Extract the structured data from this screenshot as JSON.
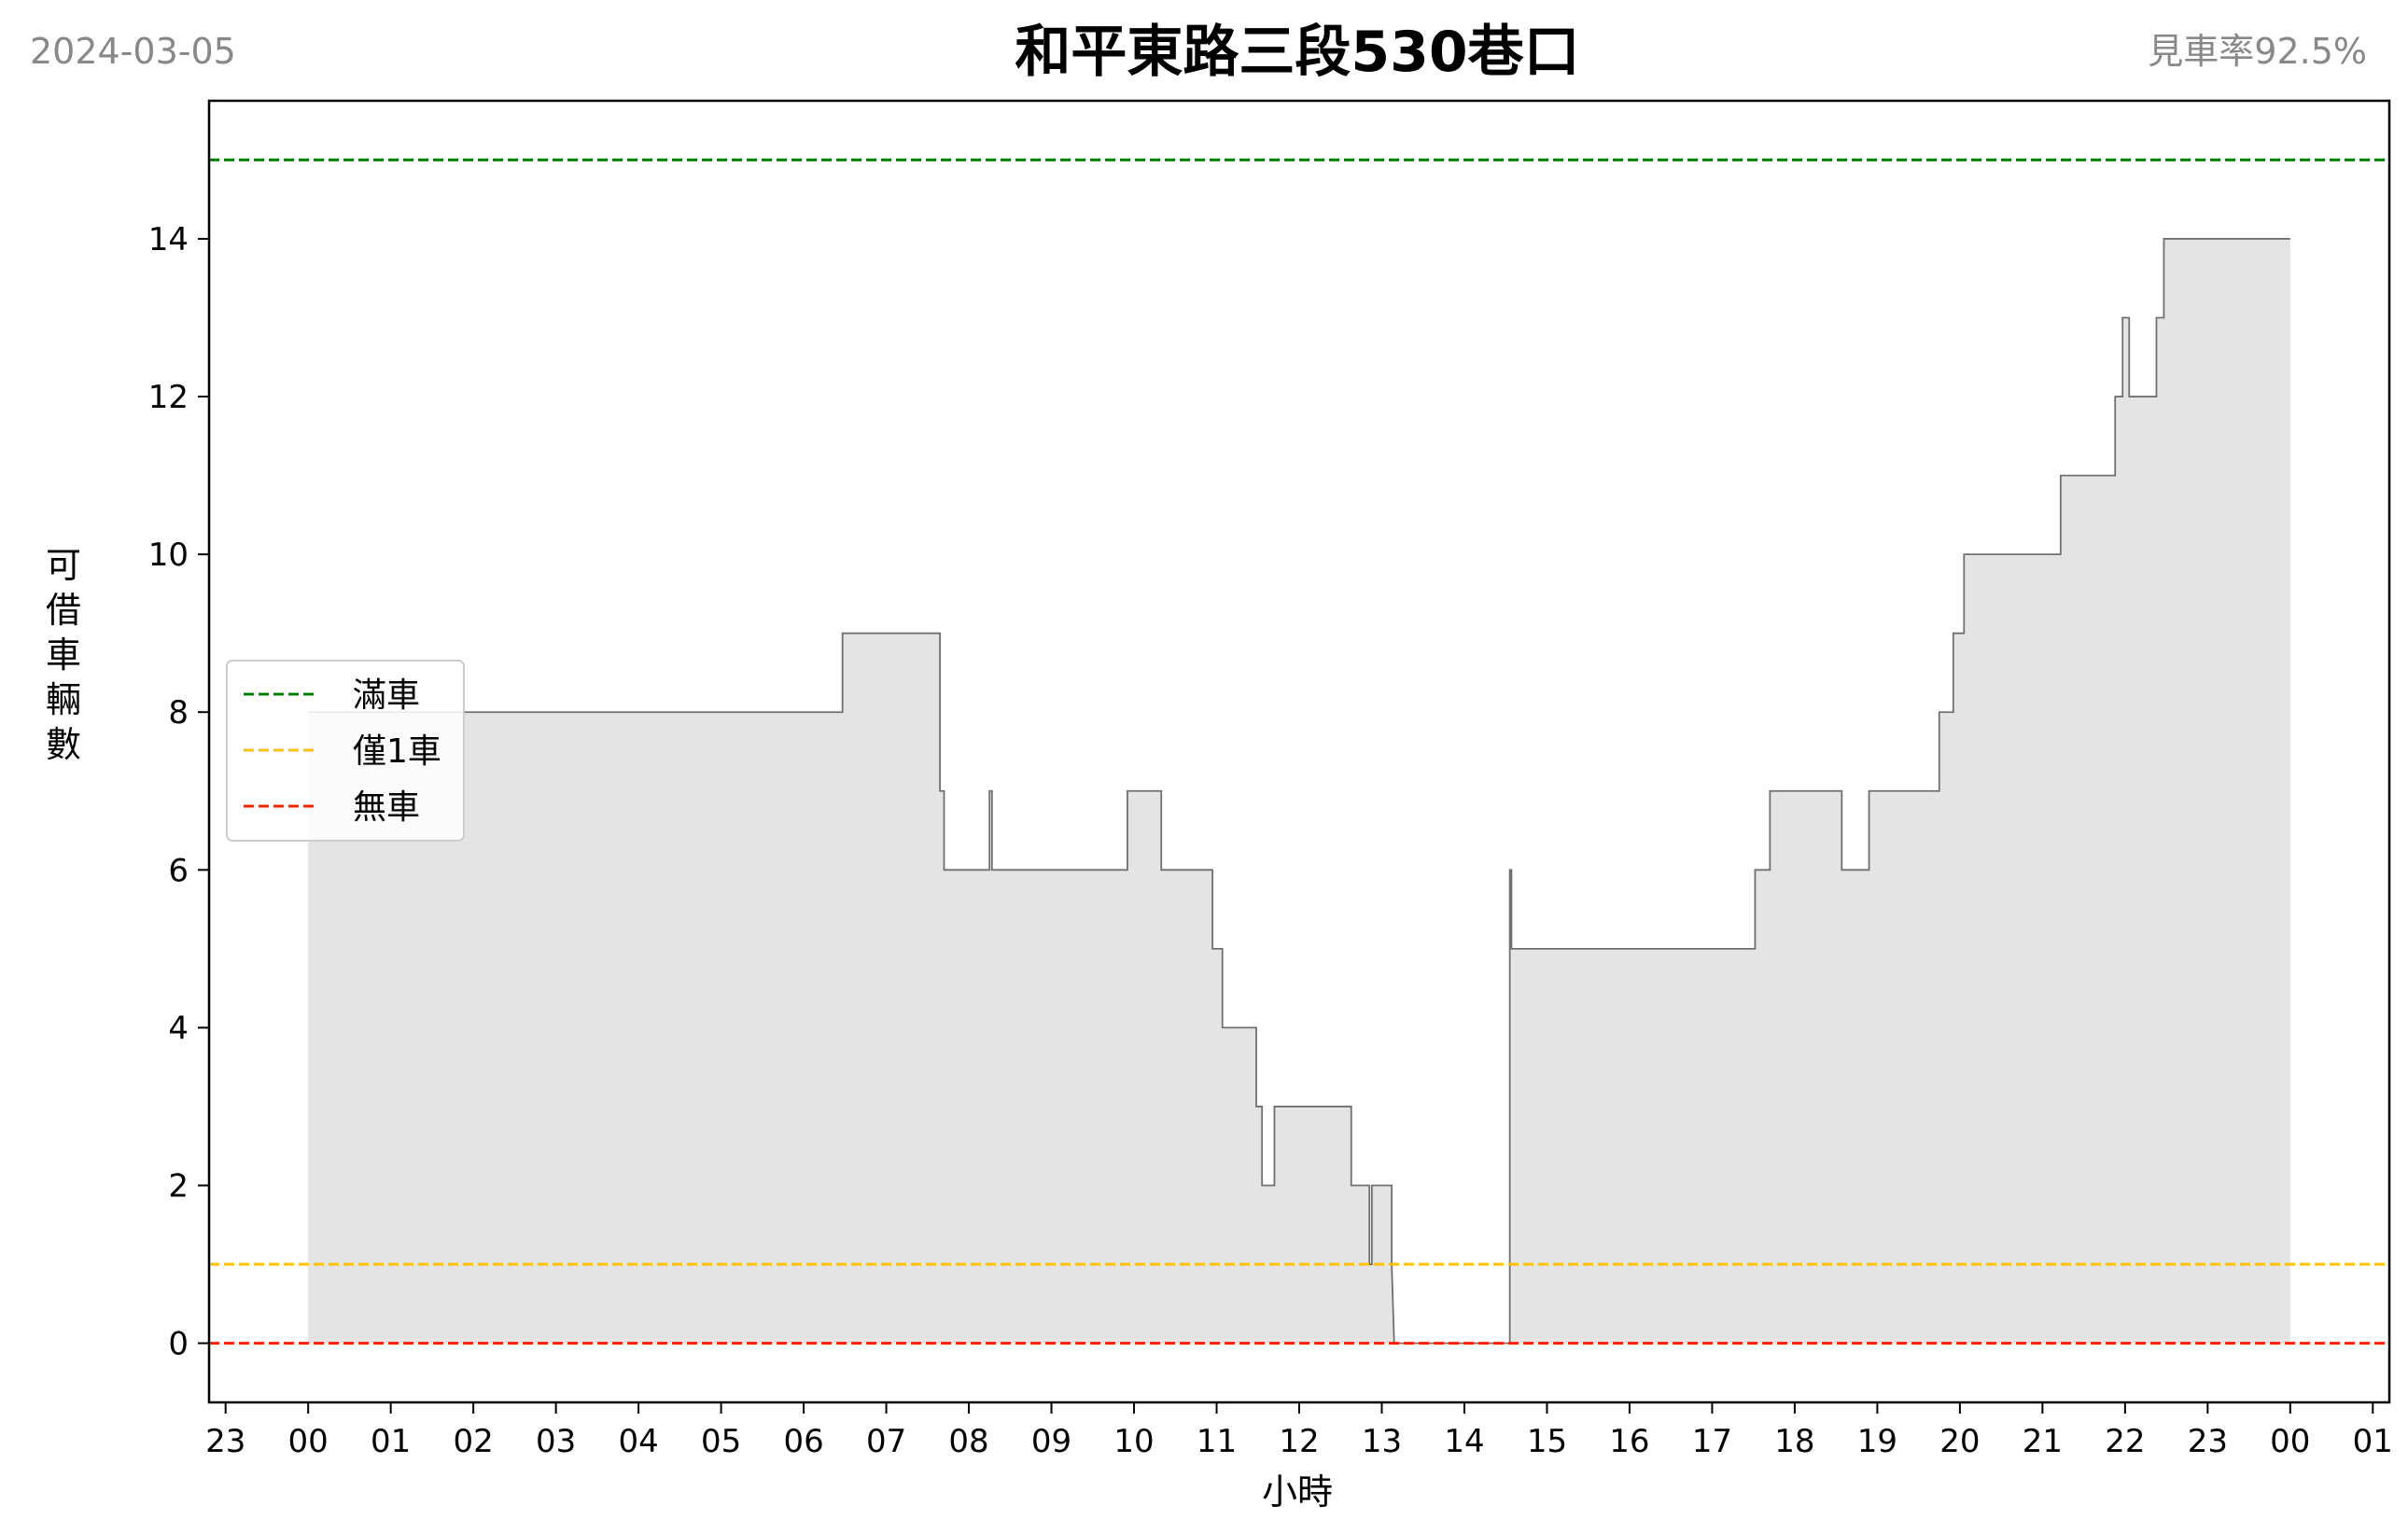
{
  "header": {
    "date": "2024-03-05",
    "title": "和平東路三段530巷口",
    "availability": "見車率92.5%"
  },
  "chart_data": {
    "type": "area",
    "title": "和平東路三段530巷口",
    "xlabel": "小時",
    "ylabel": "可借車輛數",
    "x_unit": "hours since 00:00 (2024-03-05)",
    "xlim": [
      -1.2,
      25.2
    ],
    "ylim": [
      -0.75,
      15.75
    ],
    "x_ticks": [
      {
        "pos": -1,
        "label": "23"
      },
      {
        "pos": 0,
        "label": "00"
      },
      {
        "pos": 1,
        "label": "01"
      },
      {
        "pos": 2,
        "label": "02"
      },
      {
        "pos": 3,
        "label": "03"
      },
      {
        "pos": 4,
        "label": "04"
      },
      {
        "pos": 5,
        "label": "05"
      },
      {
        "pos": 6,
        "label": "06"
      },
      {
        "pos": 7,
        "label": "07"
      },
      {
        "pos": 8,
        "label": "08"
      },
      {
        "pos": 9,
        "label": "09"
      },
      {
        "pos": 10,
        "label": "10"
      },
      {
        "pos": 11,
        "label": "11"
      },
      {
        "pos": 12,
        "label": "12"
      },
      {
        "pos": 13,
        "label": "13"
      },
      {
        "pos": 14,
        "label": "14"
      },
      {
        "pos": 15,
        "label": "15"
      },
      {
        "pos": 16,
        "label": "16"
      },
      {
        "pos": 17,
        "label": "17"
      },
      {
        "pos": 18,
        "label": "18"
      },
      {
        "pos": 19,
        "label": "19"
      },
      {
        "pos": 20,
        "label": "20"
      },
      {
        "pos": 21,
        "label": "21"
      },
      {
        "pos": 22,
        "label": "22"
      },
      {
        "pos": 23,
        "label": "23"
      },
      {
        "pos": 24,
        "label": "00"
      },
      {
        "pos": 25,
        "label": "01"
      }
    ],
    "y_ticks": [
      0,
      2,
      4,
      6,
      8,
      10,
      12,
      14
    ],
    "reference_lines": [
      {
        "name": "滿車",
        "y": 15,
        "color": "#008000"
      },
      {
        "name": "僅1車",
        "y": 1,
        "color": "#ffc000"
      },
      {
        "name": "無車",
        "y": 0,
        "color": "#ff2000"
      }
    ],
    "legend_position": "upper left",
    "series": [
      {
        "line_color": "#707070",
        "fill_color": "#e4e4e4",
        "x": [
          0,
          6.47,
          6.47,
          7.65,
          7.65,
          7.7,
          7.7,
          8.25,
          8.25,
          8.28,
          8.28,
          9.92,
          9.92,
          10.33,
          10.33,
          10.95,
          10.95,
          11.07,
          11.07,
          11.48,
          11.48,
          11.55,
          11.55,
          11.7,
          11.7,
          12.63,
          12.63,
          12.85,
          12.85,
          12.88,
          12.88,
          13.12,
          13.12,
          13.15,
          13.15,
          14.55,
          14.55,
          14.57,
          14.57,
          17.52,
          17.52,
          17.7,
          17.7,
          18.57,
          18.57,
          18.9,
          18.9,
          19.75,
          19.75,
          19.92,
          19.92,
          20.05,
          20.05,
          21.22,
          21.22,
          21.88,
          21.88,
          21.97,
          21.97,
          22.05,
          22.05,
          22.38,
          22.38,
          22.47,
          22.47,
          24.0
        ],
        "y": [
          8,
          8,
          9,
          9,
          7,
          7,
          6,
          6,
          7,
          7,
          6,
          6,
          7,
          7,
          6,
          6,
          5,
          5,
          4,
          4,
          3,
          3,
          2,
          2,
          3,
          3,
          2,
          2,
          1,
          1,
          2,
          2,
          1,
          0,
          0,
          0,
          6,
          6,
          5,
          5,
          6,
          6,
          7,
          7,
          6,
          6,
          7,
          7,
          8,
          8,
          9,
          9,
          10,
          10,
          11,
          11,
          12,
          12,
          13,
          13,
          12,
          12,
          13,
          13,
          14,
          14
        ]
      }
    ]
  }
}
